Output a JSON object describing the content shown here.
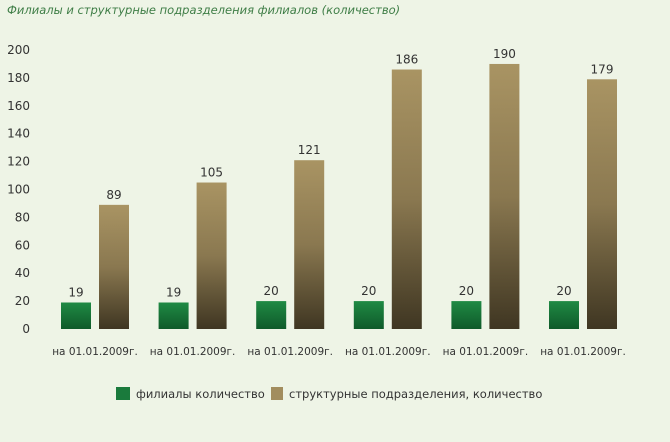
{
  "chart_data": {
    "type": "bar",
    "title": "Филиалы и структурные подразделения филиалов (количество)",
    "xlabel": "",
    "ylabel": "",
    "ylim": [
      0,
      200
    ],
    "yticks": [
      0,
      20,
      40,
      60,
      80,
      100,
      120,
      140,
      160,
      180,
      200
    ],
    "categories": [
      "на 01.01.2009г.",
      "на 01.01.2009г.",
      "на 01.01.2009г.",
      "на 01.01.2009г.",
      "на 01.01.2009г.",
      "на 01.01.2009г."
    ],
    "series": [
      {
        "name": "филиалы количество",
        "values": [
          19,
          19,
          20,
          20,
          20,
          20
        ],
        "color": "#1a7a3c"
      },
      {
        "name": "структурные подразделения, количество",
        "values": [
          89,
          105,
          121,
          186,
          190,
          179
        ],
        "color": "#a28d5e"
      }
    ],
    "grid": false,
    "legend": "bottom"
  }
}
